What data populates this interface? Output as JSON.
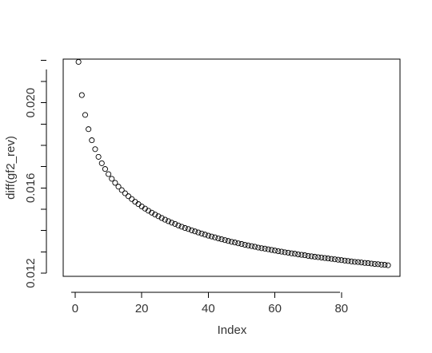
{
  "chart_data": {
    "type": "scatter",
    "title": "",
    "xlabel": "Index",
    "ylabel": "diff(gf2_rev)",
    "xlim": [
      -3.6,
      97.6
    ],
    "ylim": [
      0.01185,
      0.02205
    ],
    "x_ticks": [
      0,
      20,
      40,
      60,
      80
    ],
    "y_ticks": [
      0.012,
      0.013,
      0.014,
      0.015,
      0.016,
      0.017,
      0.018,
      0.019,
      0.02,
      0.021,
      0.022
    ],
    "y_tick_labels": [
      "0.012",
      "",
      "",
      "",
      "0.016",
      "",
      "",
      "",
      "0.020",
      "",
      ""
    ],
    "grid": false,
    "legend": "none",
    "point_color": "#000000",
    "series": [
      {
        "x": [
          1,
          2,
          3,
          4,
          5,
          6,
          7,
          8,
          9,
          10,
          11,
          12,
          13,
          14,
          15,
          16,
          17,
          18,
          19,
          20,
          21,
          22,
          23,
          24,
          25,
          26,
          27,
          28,
          29,
          30,
          31,
          32,
          33,
          34,
          35,
          36,
          37,
          38,
          39,
          40,
          41,
          42,
          43,
          44,
          45,
          46,
          47,
          48,
          49,
          50,
          51,
          52,
          53,
          54,
          55,
          56,
          57,
          58,
          59,
          60,
          61,
          62,
          63,
          64,
          65,
          66,
          67,
          68,
          69,
          70,
          71,
          72,
          73,
          74,
          75,
          76,
          77,
          78,
          79,
          80,
          81,
          82,
          83,
          84,
          85,
          86,
          87,
          88,
          89,
          90,
          91,
          92,
          93,
          94
        ],
        "y": [
          0.02192,
          0.02036,
          0.01943,
          0.01876,
          0.01824,
          0.01782,
          0.01746,
          0.01716,
          0.01689,
          0.01665,
          0.01643,
          0.01624,
          0.01606,
          0.0159,
          0.01575,
          0.01561,
          0.01548,
          0.01535,
          0.01524,
          0.01513,
          0.01503,
          0.01493,
          0.01484,
          0.01475,
          0.01467,
          0.01459,
          0.01451,
          0.01444,
          0.01437,
          0.01431,
          0.01424,
          0.01418,
          0.01412,
          0.01407,
          0.01401,
          0.01396,
          0.01391,
          0.01386,
          0.01381,
          0.01376,
          0.01372,
          0.01368,
          0.01363,
          0.01359,
          0.01355,
          0.01351,
          0.01347,
          0.01344,
          0.0134,
          0.01337,
          0.01333,
          0.0133,
          0.01327,
          0.01324,
          0.0132,
          0.01317,
          0.01315,
          0.01312,
          0.01309,
          0.01306,
          0.01303,
          0.01301,
          0.01298,
          0.01296,
          0.01293,
          0.01291,
          0.01288,
          0.01286,
          0.01284,
          0.01281,
          0.01279,
          0.01277,
          0.01275,
          0.01273,
          0.01271,
          0.01269,
          0.01267,
          0.01265,
          0.01263,
          0.01261,
          0.01259,
          0.01257,
          0.01255,
          0.01253,
          0.01252,
          0.0125,
          0.01248,
          0.01247,
          0.01245,
          0.01243,
          0.01242,
          0.0124,
          0.01239,
          0.01237
        ]
      }
    ]
  }
}
